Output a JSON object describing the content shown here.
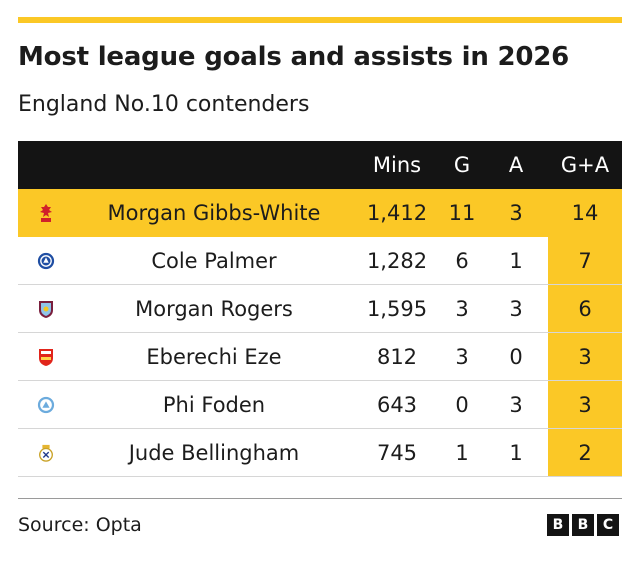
{
  "chart_data": {
    "type": "table",
    "title": "Most league goals and assists in 2026",
    "subtitle": "England No.10 contenders",
    "columns": [
      "",
      "",
      "Mins",
      "G",
      "A",
      "G+A"
    ],
    "rows": [
      {
        "club_icon": "nottingham-forest-crest-icon",
        "player": "Morgan Gibbs-White",
        "mins": "1,412",
        "g": "11",
        "a": "3",
        "ga": "14",
        "highlight": true
      },
      {
        "club_icon": "chelsea-crest-icon",
        "player": "Cole Palmer",
        "mins": "1,282",
        "g": "6",
        "a": "1",
        "ga": "7"
      },
      {
        "club_icon": "aston-villa-crest-icon",
        "player": "Morgan Rogers",
        "mins": "1,595",
        "g": "3",
        "a": "3",
        "ga": "6"
      },
      {
        "club_icon": "arsenal-crest-icon",
        "player": "Eberechi Eze",
        "mins": "812",
        "g": "3",
        "a": "0",
        "ga": "3"
      },
      {
        "club_icon": "manchester-city-crest-icon",
        "player": "Phi Foden",
        "mins": "643",
        "g": "0",
        "a": "3",
        "ga": "3"
      },
      {
        "club_icon": "real-madrid-crest-icon",
        "player": "Jude Bellingham",
        "mins": "745",
        "g": "1",
        "a": "1",
        "ga": "2"
      }
    ],
    "colors": {
      "accent": "#fbc826",
      "header_bg": "#141414"
    }
  },
  "footer": {
    "source": "Source: Opta",
    "logo_letters": [
      "B",
      "B",
      "C"
    ]
  }
}
